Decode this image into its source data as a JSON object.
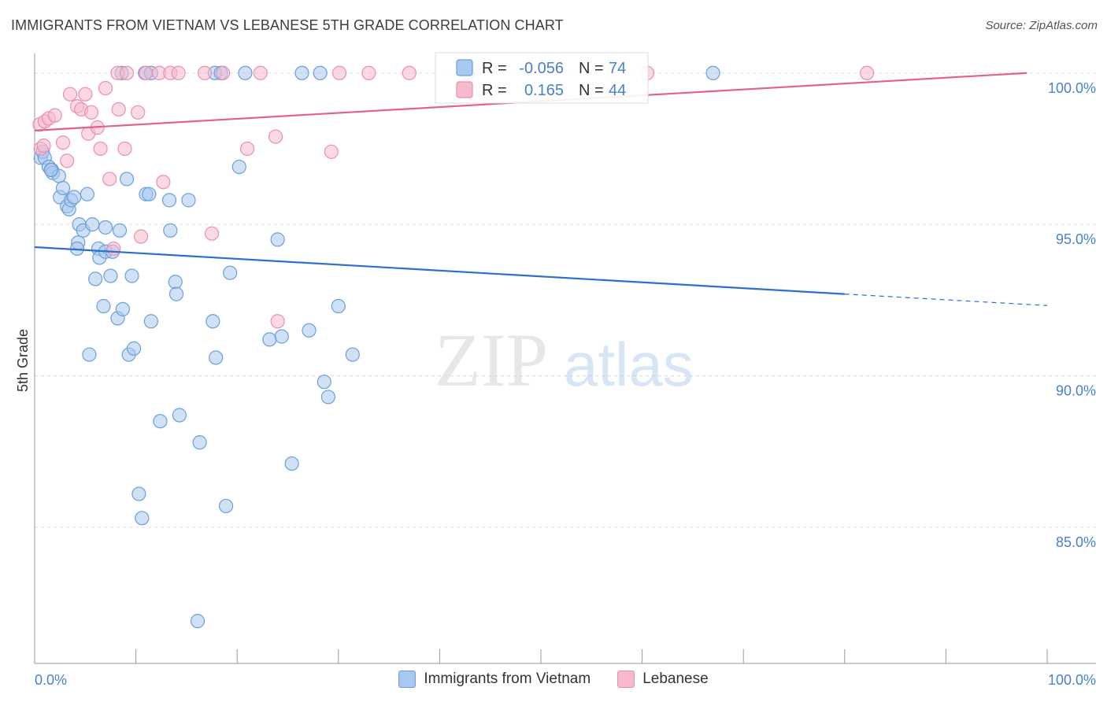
{
  "title": "IMMIGRANTS FROM VIETNAM VS LEBANESE 5TH GRADE CORRELATION CHART",
  "source": "Source: ZipAtlas.com",
  "watermark": {
    "zip": "ZIP",
    "atlas": "atlas"
  },
  "colors": {
    "blue_fill": "#a9c8ee",
    "blue_stroke": "#6a9fdc",
    "blue_line": "#2f6fcc",
    "pink_fill": "#f6b9cd",
    "pink_stroke": "#ec8fae",
    "pink_line": "#e0628d",
    "tick_text": "#4a7fd0",
    "grid": "#dddddd"
  },
  "chart_data": {
    "type": "scatter",
    "title": "IMMIGRANTS FROM VIETNAM VS LEBANESE 5TH GRADE CORRELATION CHART",
    "xlabel": "",
    "ylabel": "5th Grade",
    "xlim": [
      0,
      100
    ],
    "ylim": [
      80.5,
      100.8
    ],
    "x_tick_labels": [
      {
        "x": 0,
        "label": "0.0%"
      },
      {
        "x": 100,
        "label": "100.0%"
      }
    ],
    "x_minor_ticks": [
      0,
      10,
      20,
      30,
      40,
      50,
      60,
      70,
      80,
      90,
      100
    ],
    "y_ticks": [
      {
        "y": 100,
        "label": "100.0%"
      },
      {
        "y": 95,
        "label": "95.0%"
      },
      {
        "y": 90,
        "label": "90.0%"
      },
      {
        "y": 85,
        "label": "85.0%"
      }
    ],
    "grid": true,
    "legend_position": "bottom",
    "stats_box": [
      {
        "r_label": "R =",
        "r": "-0.056",
        "n_label": "N =",
        "n": "74"
      },
      {
        "r_label": "R =",
        "r": "0.165",
        "n_label": "N =",
        "n": "44"
      }
    ],
    "series": [
      {
        "name": "Immigrants from Vietnam",
        "color": "blue",
        "trend": {
          "x0": 0,
          "y0": 94.25,
          "x1": 80,
          "y1": 92.7,
          "dash_to_x": 100,
          "dash_to_y": 92.32
        },
        "points": [
          [
            0.6,
            97.2
          ],
          [
            0.8,
            97.4
          ],
          [
            1.0,
            97.2
          ],
          [
            1.4,
            96.9
          ],
          [
            1.7,
            96.8
          ],
          [
            1.8,
            96.7
          ],
          [
            2.4,
            96.6
          ],
          [
            2.5,
            95.9
          ],
          [
            2.8,
            96.2
          ],
          [
            3.2,
            95.6
          ],
          [
            3.4,
            95.5
          ],
          [
            3.6,
            95.8
          ],
          [
            3.9,
            95.9
          ],
          [
            4.4,
            95.0
          ],
          [
            4.8,
            94.8
          ],
          [
            5.2,
            96.0
          ],
          [
            4.3,
            94.4
          ],
          [
            4.2,
            94.2
          ],
          [
            5.7,
            95.0
          ],
          [
            6.3,
            94.2
          ],
          [
            6.4,
            93.9
          ],
          [
            7.0,
            94.9
          ],
          [
            7.0,
            94.1
          ],
          [
            7.7,
            94.1
          ],
          [
            8.4,
            94.8
          ],
          [
            6.0,
            93.2
          ],
          [
            7.5,
            93.3
          ],
          [
            9.6,
            93.3
          ],
          [
            6.8,
            92.3
          ],
          [
            8.2,
            91.9
          ],
          [
            8.7,
            92.2
          ],
          [
            11.5,
            91.8
          ],
          [
            9.3,
            90.7
          ],
          [
            9.8,
            90.9
          ],
          [
            5.4,
            90.7
          ],
          [
            9.1,
            96.5
          ],
          [
            11.0,
            96.0
          ],
          [
            11.3,
            96.0
          ],
          [
            13.3,
            95.8
          ],
          [
            15.2,
            95.8
          ],
          [
            13.4,
            94.8
          ],
          [
            13.9,
            93.1
          ],
          [
            14.0,
            92.7
          ],
          [
            17.6,
            91.8
          ],
          [
            19.3,
            93.4
          ],
          [
            17.9,
            90.6
          ],
          [
            23.2,
            91.2
          ],
          [
            24.4,
            91.3
          ],
          [
            27.1,
            91.5
          ],
          [
            24.0,
            94.5
          ],
          [
            20.2,
            96.9
          ],
          [
            12.4,
            88.5
          ],
          [
            14.3,
            88.7
          ],
          [
            16.3,
            87.8
          ],
          [
            25.4,
            87.1
          ],
          [
            10.3,
            86.1
          ],
          [
            10.6,
            85.3
          ],
          [
            18.9,
            85.7
          ],
          [
            16.1,
            81.9
          ],
          [
            28.6,
            89.8
          ],
          [
            29.0,
            89.3
          ],
          [
            30.0,
            92.3
          ],
          [
            31.4,
            90.7
          ],
          [
            8.6,
            100.0
          ],
          [
            10.9,
            100.0
          ],
          [
            11.5,
            100.0
          ],
          [
            17.8,
            100.0
          ],
          [
            18.4,
            100.0
          ],
          [
            20.8,
            100.0
          ],
          [
            26.4,
            100.0
          ],
          [
            28.2,
            100.0
          ],
          [
            42.8,
            100.0
          ],
          [
            67.0,
            100.0
          ],
          [
            1.6,
            96.8
          ]
        ]
      },
      {
        "name": "Lebanese",
        "color": "pink",
        "trend": {
          "x0": 0,
          "y0": 98.1,
          "x1": 98,
          "y1": 100.0,
          "dash_to_x": null,
          "dash_to_y": null
        },
        "points": [
          [
            0.5,
            98.3
          ],
          [
            1.0,
            98.4
          ],
          [
            1.4,
            98.5
          ],
          [
            2.0,
            98.6
          ],
          [
            0.6,
            97.5
          ],
          [
            0.9,
            97.6
          ],
          [
            2.8,
            97.7
          ],
          [
            3.2,
            97.1
          ],
          [
            3.5,
            99.3
          ],
          [
            4.2,
            98.9
          ],
          [
            4.6,
            98.8
          ],
          [
            5.0,
            99.3
          ],
          [
            5.6,
            98.7
          ],
          [
            5.3,
            98.0
          ],
          [
            6.2,
            98.2
          ],
          [
            6.5,
            97.5
          ],
          [
            7.0,
            99.5
          ],
          [
            7.4,
            96.5
          ],
          [
            8.3,
            98.8
          ],
          [
            8.9,
            97.5
          ],
          [
            10.2,
            98.7
          ],
          [
            12.7,
            96.4
          ],
          [
            10.5,
            94.6
          ],
          [
            17.5,
            94.7
          ],
          [
            7.8,
            94.2
          ],
          [
            21.0,
            97.5
          ],
          [
            23.8,
            97.9
          ],
          [
            29.3,
            97.4
          ],
          [
            24.0,
            91.8
          ],
          [
            8.2,
            100.0
          ],
          [
            9.1,
            100.0
          ],
          [
            11.0,
            100.0
          ],
          [
            12.3,
            100.0
          ],
          [
            13.4,
            100.0
          ],
          [
            14.2,
            100.0
          ],
          [
            16.8,
            100.0
          ],
          [
            18.6,
            100.0
          ],
          [
            22.3,
            100.0
          ],
          [
            33.0,
            100.0
          ],
          [
            37.0,
            100.0
          ],
          [
            42.7,
            100.0
          ],
          [
            60.5,
            100.0
          ],
          [
            82.2,
            100.0
          ],
          [
            30.1,
            100.0
          ]
        ]
      }
    ]
  },
  "legend": [
    {
      "label": "Immigrants from Vietnam",
      "color": "#a9c8ee",
      "border": "#6a9fdc"
    },
    {
      "label": "Lebanese",
      "color": "#f6b9cd",
      "border": "#ec8fae"
    }
  ]
}
